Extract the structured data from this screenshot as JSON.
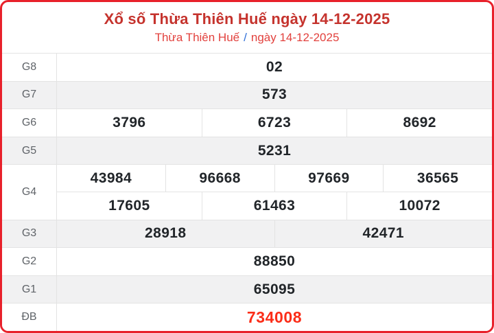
{
  "header": {
    "title": "Xổ số Thừa Thiên Huế ngày 14-12-2025",
    "breadcrumb": {
      "region": "Thừa Thiên Huế",
      "separator": "/",
      "date": "ngày 14-12-2025"
    }
  },
  "colors": {
    "border_red": "#e8212b",
    "accent_red": "#c5332d",
    "subtitle_red": "#e2413d",
    "link_blue": "#2e6fd8",
    "special_red": "#fb2d18",
    "row_gray": "#f1f1f2",
    "line_gray": "#e3e3e3"
  },
  "table": {
    "rows": [
      {
        "label": "G8",
        "values": [
          "02"
        ]
      },
      {
        "label": "G7",
        "values": [
          "573"
        ]
      },
      {
        "label": "G6",
        "values": [
          "3796",
          "6723",
          "8692"
        ]
      },
      {
        "label": "G5",
        "values": [
          "5231"
        ]
      },
      {
        "label": "G4",
        "lines": [
          [
            "43984",
            "96668",
            "97669",
            "36565"
          ],
          [
            "17605",
            "61463",
            "10072"
          ]
        ]
      },
      {
        "label": "G3",
        "values": [
          "28918",
          "42471"
        ]
      },
      {
        "label": "G2",
        "values": [
          "88850"
        ]
      },
      {
        "label": "G1",
        "values": [
          "65095"
        ]
      },
      {
        "label": "ĐB",
        "values": [
          "734008"
        ],
        "special": true
      }
    ]
  }
}
